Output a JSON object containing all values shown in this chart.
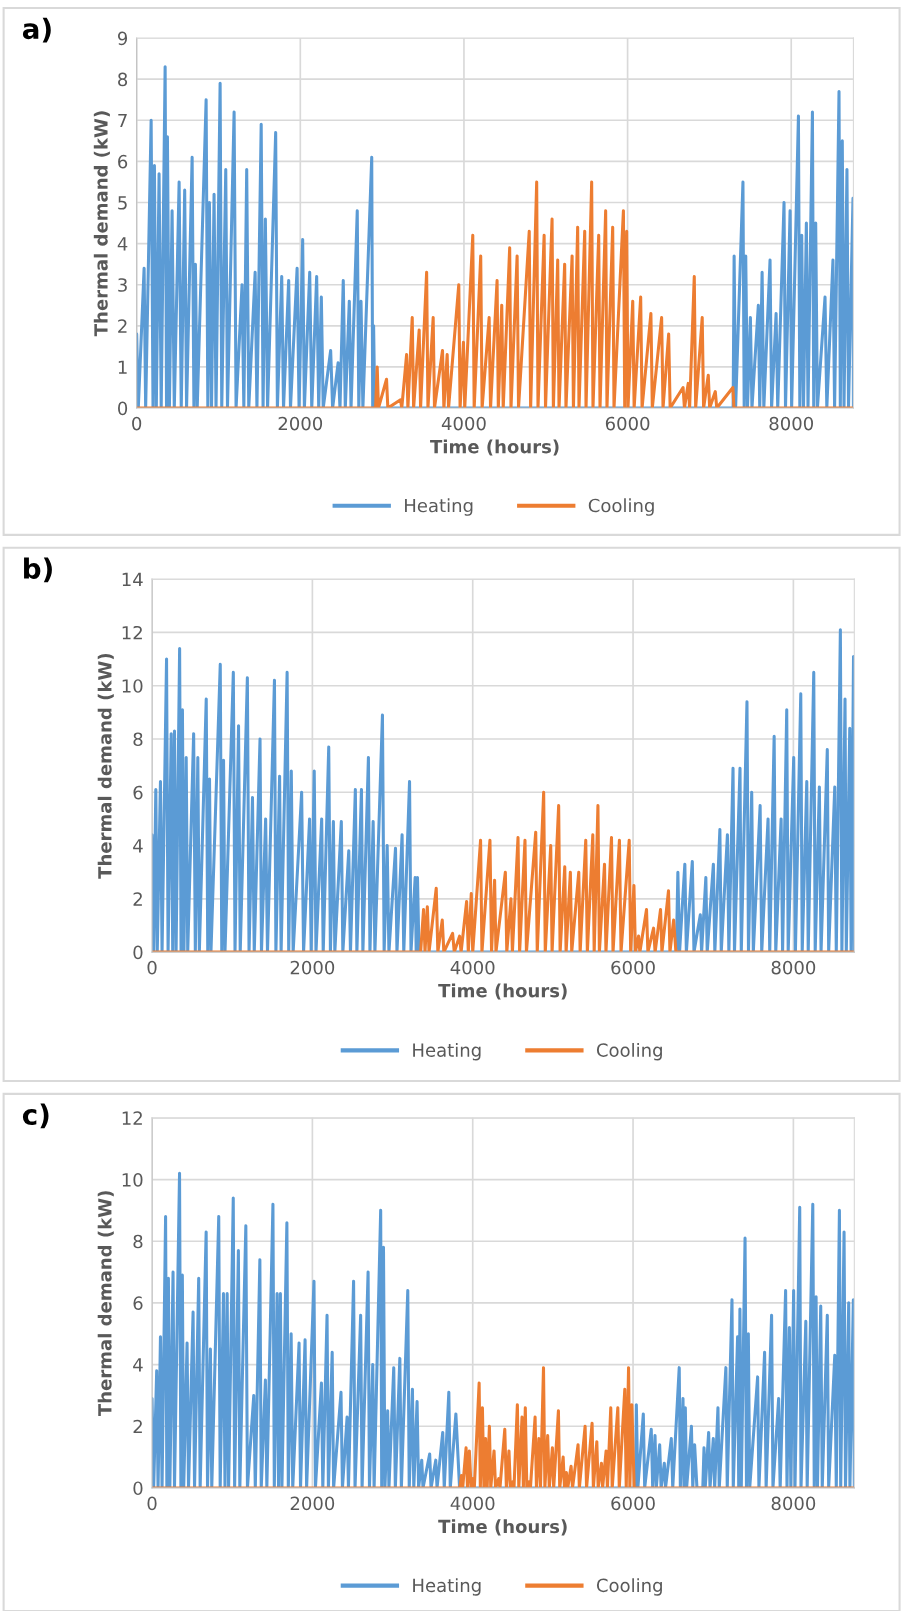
{
  "chart_data": [
    {
      "type": "line",
      "title": "a)",
      "xlabel": "Time (hours)",
      "ylabel": "Thermal demand (kW)",
      "xlim": [
        0,
        8760
      ],
      "xticks": [
        0,
        2000,
        4000,
        6000,
        8000
      ],
      "ylim": [
        0,
        9
      ],
      "yticks": [
        0,
        1,
        2,
        3,
        4,
        5,
        6,
        7,
        8,
        9
      ],
      "grid": true,
      "legend": "bottom",
      "line_style": "solid",
      "marker": "none",
      "series": [
        {
          "name": "Heating",
          "color": "#5b9bd5",
          "x": [
            0,
            20,
            91,
            110,
            177,
            200,
            217,
            240,
            274,
            300,
            348,
            365,
            376,
            400,
            433,
            460,
            519,
            545,
            587,
            610,
            678,
            700,
            718,
            740,
            849,
            870,
            889,
            915,
            946,
            970,
            1020,
            1040,
            1089,
            1110,
            1191,
            1215,
            1288,
            1310,
            1345,
            1370,
            1448,
            1470,
            1522,
            1545,
            1573,
            1600,
            1699,
            1720,
            1773,
            1795,
            1858,
            1880,
            1961,
            1985,
            2029,
            2050,
            2115,
            2140,
            2200,
            2225,
            2257,
            2280,
            2371,
            2395,
            2462,
            2485,
            2525,
            2550,
            2599,
            2620,
            2696,
            2715,
            2742,
            2765,
            2873,
            2885,
            2896,
            2910,
            7290,
            7302,
            7320,
            7410,
            7425,
            7444,
            7465,
            7501,
            7520,
            7598,
            7615,
            7644,
            7665,
            7741,
            7760,
            7815,
            7835,
            7912,
            7930,
            7986,
            8005,
            8088,
            8105,
            8128,
            8150,
            8185,
            8205,
            8259,
            8275,
            8299,
            8320,
            8413,
            8435,
            8510,
            8530,
            8584,
            8600,
            8624,
            8645,
            8681,
            8700,
            8755,
            8760
          ],
          "values": [
            1.8,
            0,
            3.4,
            0,
            7.0,
            0,
            5.9,
            0,
            5.7,
            0,
            8.3,
            0,
            6.6,
            0,
            4.8,
            0,
            5.5,
            0,
            5.3,
            0,
            6.1,
            0,
            3.5,
            0,
            7.5,
            0,
            5.0,
            0,
            5.2,
            0,
            7.9,
            0,
            5.8,
            0,
            7.2,
            0,
            3.0,
            0,
            5.8,
            0,
            3.3,
            0,
            6.9,
            0,
            4.6,
            0,
            6.7,
            0,
            3.2,
            0,
            3.1,
            0,
            3.4,
            0,
            4.1,
            0,
            3.3,
            0,
            3.2,
            0,
            2.7,
            0,
            1.4,
            0,
            1.1,
            0,
            3.1,
            0,
            2.6,
            0,
            4.8,
            0,
            2.6,
            0,
            6.1,
            0,
            2.0,
            0,
            0,
            3.7,
            0,
            5.5,
            0,
            3.7,
            0,
            2.2,
            0,
            2.5,
            0,
            3.3,
            0,
            3.6,
            0,
            2.3,
            0,
            5.0,
            0,
            4.8,
            0,
            7.1,
            0,
            4.2,
            0,
            4.5,
            0,
            7.2,
            0,
            4.5,
            0,
            2.7,
            0,
            3.6,
            0,
            7.7,
            0,
            6.5,
            0,
            5.8,
            0,
            5.1,
            0
          ]
        },
        {
          "name": "Cooling",
          "color": "#ed7d31",
          "x": [
            0,
            2920,
            2940,
            2955,
            3054,
            3070,
            3225,
            3240,
            3299,
            3315,
            3368,
            3385,
            3453,
            3470,
            3544,
            3560,
            3624,
            3640,
            3738,
            3755,
            3795,
            3812,
            3937,
            3953,
            3994,
            4010,
            4108,
            4125,
            4205,
            4222,
            4308,
            4325,
            4405,
            4420,
            4462,
            4480,
            4559,
            4575,
            4650,
            4667,
            4798,
            4815,
            4889,
            4905,
            4980,
            4997,
            5077,
            5093,
            5146,
            5162,
            5231,
            5247,
            5322,
            5338,
            5390,
            5406,
            5476,
            5492,
            5561,
            5577,
            5647,
            5663,
            5732,
            5748,
            5818,
            5834,
            5949,
            5965,
            5989,
            6005,
            6063,
            6080,
            6160,
            6177,
            6285,
            6302,
            6416,
            6433,
            6502,
            6520,
            6678,
            6695,
            6741,
            6758,
            6815,
            6832,
            6912,
            6929,
            6986,
            7003,
            7072,
            7090,
            7287,
            7300,
            8760
          ],
          "values": [
            0,
            0,
            1.0,
            0,
            0.7,
            0,
            0.2,
            0,
            1.3,
            0,
            2.2,
            0,
            1.9,
            0,
            3.3,
            0,
            2.2,
            0,
            1.4,
            0,
            1.3,
            0,
            3.0,
            0,
            1.6,
            0,
            4.2,
            0,
            3.7,
            0,
            2.2,
            0,
            3.1,
            0,
            2.5,
            0,
            3.9,
            0,
            3.7,
            0,
            4.3,
            0,
            5.5,
            0,
            4.2,
            0,
            4.6,
            0,
            3.6,
            0,
            3.5,
            0,
            3.7,
            0,
            4.4,
            0,
            4.3,
            0,
            5.5,
            0,
            4.2,
            0,
            4.8,
            0,
            4.4,
            0,
            4.8,
            0,
            4.3,
            0,
            2.6,
            0,
            2.7,
            0,
            2.3,
            0,
            2.2,
            0,
            1.8,
            0,
            0.5,
            0,
            0.6,
            0,
            3.2,
            0,
            2.2,
            0,
            0.8,
            0,
            0.4,
            0,
            0.5,
            0,
            0
          ]
        }
      ]
    },
    {
      "type": "line",
      "title": "b)",
      "xlabel": "Time (hours)",
      "ylabel": "Thermal demand (kW)",
      "xlim": [
        0,
        8760
      ],
      "xticks": [
        0,
        2000,
        4000,
        6000,
        8000
      ],
      "ylim": [
        0,
        14
      ],
      "yticks": [
        0,
        2,
        4,
        6,
        8,
        10,
        12,
        14
      ],
      "grid": true,
      "legend": "bottom",
      "line_style": "solid",
      "marker": "none",
      "series": [
        {
          "name": "Heating",
          "color": "#5b9bd5",
          "x": [
            0,
            20,
            47,
            65,
            105,
            125,
            181,
            200,
            239,
            258,
            280,
            300,
            344,
            362,
            379,
            398,
            426,
            445,
            519,
            540,
            571,
            590,
            676,
            695,
            717,
            735,
            851,
            870,
            892,
            910,
            1014,
            1035,
            1079,
            1100,
            1189,
            1210,
            1253,
            1275,
            1347,
            1365,
            1417,
            1440,
            1527,
            1545,
            1591,
            1610,
            1685,
            1705,
            1737,
            1760,
            1866,
            1890,
            1965,
            1985,
            2023,
            2045,
            2116,
            2135,
            2204,
            2225,
            2262,
            2280,
            2361,
            2380,
            2454,
            2475,
            2536,
            2555,
            2612,
            2630,
            2699,
            2718,
            2758,
            2780,
            2874,
            2895,
            2933,
            2955,
            3037,
            3055,
            3119,
            3140,
            3212,
            3230,
            3282,
            3295,
            3311,
            3330,
            6540,
            6559,
            6580,
            6646,
            6665,
            6739,
            6760,
            6839,
            6855,
            6908,
            6925,
            7002,
            7020,
            7083,
            7100,
            7177,
            7195,
            7247,
            7265,
            7334,
            7350,
            7421,
            7440,
            7480,
            7500,
            7585,
            7605,
            7684,
            7705,
            7760,
            7780,
            7847,
            7865,
            7917,
            7935,
            8004,
            8025,
            8092,
            8110,
            8167,
            8185,
            8254,
            8272,
            8324,
            8345,
            8423,
            8440,
            8516,
            8535,
            8586,
            8605,
            8644,
            8660,
            8703,
            8720,
            8750,
            8760
          ],
          "values": [
            4.4,
            0,
            6.1,
            0,
            6.4,
            0,
            11.0,
            0,
            8.2,
            0,
            8.3,
            0,
            11.4,
            0,
            9.1,
            0,
            7.3,
            0,
            8.2,
            0,
            7.3,
            0,
            9.5,
            0,
            6.5,
            0,
            10.8,
            0,
            7.2,
            0,
            10.5,
            0,
            8.5,
            0,
            10.3,
            0,
            5.8,
            0,
            8.0,
            0,
            5.0,
            0,
            10.2,
            0,
            6.6,
            0,
            10.5,
            0,
            6.8,
            0,
            6.0,
            0,
            5.0,
            0,
            6.8,
            0,
            5.0,
            0,
            7.7,
            0,
            4.9,
            0,
            4.9,
            0,
            3.8,
            0,
            6.1,
            0,
            6.1,
            0,
            7.3,
            0,
            4.9,
            0,
            8.9,
            0,
            4.0,
            0,
            3.9,
            0,
            4.4,
            0,
            6.4,
            0,
            2.8,
            0,
            2.8,
            0,
            0,
            3.0,
            0,
            3.3,
            0,
            3.4,
            0,
            1.4,
            0,
            2.8,
            0,
            3.3,
            0,
            4.6,
            0,
            4.4,
            0,
            6.9,
            0,
            6.9,
            0,
            9.4,
            0,
            6.0,
            0,
            5.5,
            0,
            5.0,
            0,
            8.1,
            0,
            5.0,
            0,
            9.1,
            0,
            7.3,
            0,
            9.7,
            0,
            6.4,
            0,
            10.5,
            0,
            6.2,
            0,
            7.6,
            0,
            6.2,
            0,
            12.1,
            0,
            9.5,
            0,
            8.4,
            0,
            11.1,
            0
          ]
        },
        {
          "name": "Cooling",
          "color": "#ed7d31",
          "x": [
            0,
            3350,
            3387,
            3405,
            3434,
            3455,
            3545,
            3565,
            3620,
            3640,
            3749,
            3770,
            3836,
            3855,
            3924,
            3945,
            3982,
            4000,
            4098,
            4115,
            4215,
            4235,
            4273,
            4290,
            4407,
            4425,
            4477,
            4495,
            4565,
            4585,
            4652,
            4670,
            4786,
            4805,
            4885,
            4905,
            4973,
            4990,
            5072,
            5090,
            5148,
            5165,
            5218,
            5235,
            5323,
            5340,
            5410,
            5430,
            5498,
            5515,
            5562,
            5580,
            5644,
            5662,
            5731,
            5750,
            5830,
            5850,
            5952,
            5970,
            6011,
            6030,
            6069,
            6085,
            6168,
            6185,
            6256,
            6275,
            6343,
            6360,
            6442,
            6460,
            6506,
            6535,
            8760
          ],
          "values": [
            0,
            0,
            1.6,
            0,
            1.7,
            0,
            2.4,
            0,
            1.2,
            0,
            0.7,
            0,
            0.6,
            0,
            1.9,
            0,
            2.2,
            0,
            4.2,
            0,
            4.2,
            0,
            2.7,
            0,
            3.0,
            0,
            2.0,
            0,
            4.3,
            0,
            4.2,
            0,
            4.5,
            0,
            6.0,
            0,
            4.0,
            0,
            5.5,
            0,
            3.2,
            0,
            3.0,
            0,
            3.0,
            0,
            4.2,
            0,
            4.4,
            0,
            5.5,
            0,
            3.3,
            0,
            4.3,
            0,
            4.2,
            0,
            4.2,
            0,
            2.5,
            0,
            0.6,
            0,
            1.6,
            0,
            0.9,
            0,
            1.6,
            0,
            2.3,
            0,
            1.2,
            0,
            0
          ]
        }
      ]
    },
    {
      "type": "line",
      "title": "c)",
      "xlabel": "Time (hours)",
      "ylabel": "Thermal demand (kW)",
      "xlim": [
        0,
        8760
      ],
      "xticks": [
        0,
        2000,
        4000,
        6000,
        8000
      ],
      "ylim": [
        0,
        12
      ],
      "yticks": [
        0,
        2,
        4,
        6,
        8,
        10,
        12
      ],
      "grid": true,
      "legend": "bottom",
      "line_style": "solid",
      "marker": "none",
      "series": [
        {
          "name": "Heating",
          "color": "#5b9bd5",
          "x": [
            0,
            20,
            58,
            75,
            105,
            125,
            169,
            185,
            204,
            222,
            262,
            280,
            343,
            360,
            378,
            395,
            437,
            455,
            512,
            530,
            582,
            600,
            675,
            692,
            728,
            745,
            832,
            850,
            891,
            910,
            937,
            955,
            1013,
            1030,
            1077,
            1095,
            1170,
            1190,
            1269,
            1288,
            1345,
            1362,
            1414,
            1432,
            1508,
            1525,
            1560,
            1578,
            1601,
            1620,
            1682,
            1700,
            1735,
            1755,
            1834,
            1852,
            1909,
            1928,
            2020,
            2038,
            2113,
            2130,
            2183,
            2200,
            2247,
            2265,
            2357,
            2375,
            2433,
            2450,
            2514,
            2532,
            2602,
            2620,
            2695,
            2712,
            2753,
            2770,
            2852,
            2865,
            2887,
            2905,
            2939,
            2955,
            3015,
            3035,
            3091,
            3110,
            3190,
            3208,
            3248,
            3265,
            3306,
            3325,
            3364,
            3380,
            3463,
            3480,
            3539,
            3555,
            3626,
            3645,
            3702,
            3720,
            3790,
            3836,
            6030,
            6041,
            6060,
            6128,
            6145,
            6227,
            6245,
            6274,
            6290,
            6332,
            6350,
            6390,
            6405,
            6477,
            6495,
            6576,
            6590,
            6623,
            6635,
            6652,
            6668,
            6728,
            6745,
            6768,
            6797,
            6870,
            6885,
            6900,
            6943,
            6960,
            7001,
            7018,
            7059,
            7075,
            7158,
            7175,
            7234,
            7250,
            7304,
            7318,
            7333,
            7350,
            7397,
            7415,
            7438,
            7455,
            7554,
            7570,
            7641,
            7660,
            7728,
            7745,
            7816,
            7835,
            7903,
            7920,
            7950,
            7968,
            8003,
            8020,
            8079,
            8095,
            8155,
            8172,
            8242,
            8260,
            8283,
            8300,
            8341,
            8360,
            8423,
            8440,
            8516,
            8535,
            8574,
            8590,
            8632,
            8650,
            8690,
            8705,
            8748,
            8760
          ],
          "values": [
            2.9,
            0,
            3.8,
            0,
            4.9,
            0,
            8.8,
            0,
            6.8,
            0,
            7.0,
            0,
            10.2,
            0,
            6.9,
            0,
            4.7,
            0,
            5.7,
            0,
            6.8,
            0,
            8.3,
            0,
            4.5,
            0,
            8.8,
            0,
            6.3,
            0,
            6.3,
            0,
            9.4,
            0,
            7.7,
            0,
            8.5,
            0,
            3.0,
            0,
            7.4,
            0,
            3.5,
            0,
            9.2,
            0,
            6.3,
            0,
            6.3,
            0,
            8.6,
            0,
            5.0,
            0,
            4.7,
            0,
            4.8,
            0,
            6.7,
            0,
            3.4,
            0,
            5.6,
            0,
            4.4,
            0,
            3.1,
            0,
            2.3,
            0,
            6.7,
            0,
            5.6,
            0,
            7.0,
            0,
            4.0,
            0,
            9.0,
            0,
            7.8,
            0,
            2.5,
            0,
            3.9,
            0,
            4.2,
            0,
            6.4,
            0,
            3.2,
            0,
            2.8,
            0,
            0.9,
            0,
            1.1,
            0,
            0.9,
            0,
            1.8,
            0,
            3.1,
            0,
            2.4,
            0,
            0,
            2.7,
            0,
            2.4,
            0,
            1.9,
            0,
            1.7,
            0,
            1.4,
            0,
            0.8,
            0,
            1.6,
            0,
            3.9,
            0,
            2.9,
            0,
            2.6,
            0,
            2.0,
            0,
            1.4,
            0,
            0,
            1.3,
            0,
            1.8,
            0,
            1.6,
            0,
            2.6,
            0,
            3.9,
            0,
            6.1,
            0,
            4.9,
            0,
            5.8,
            0,
            8.1,
            0,
            5.0,
            0,
            3.6,
            0,
            4.4,
            0,
            5.6,
            0,
            2.9,
            0,
            6.4,
            0,
            5.2,
            0,
            6.4,
            0,
            9.1,
            0,
            5.4,
            0,
            9.2,
            0,
            6.2,
            0,
            5.9,
            0,
            5.6,
            0,
            4.3,
            0,
            9.0,
            0,
            8.3,
            0,
            6.0,
            0,
            6.1,
            0
          ]
        },
        {
          "name": "Cooling",
          "color": "#ed7d31",
          "x": [
            0,
            3840,
            3859,
            3875,
            3917,
            3935,
            3958,
            3980,
            4004,
            4020,
            4080,
            4095,
            4121,
            4140,
            4161,
            4180,
            4208,
            4225,
            4266,
            4285,
            4324,
            4340,
            4400,
            4420,
            4452,
            4470,
            4499,
            4515,
            4557,
            4575,
            4615,
            4632,
            4656,
            4675,
            4702,
            4720,
            4778,
            4795,
            4825,
            4845,
            4883,
            4900,
            4935,
            4955,
            4994,
            5010,
            5069,
            5085,
            5128,
            5145,
            5168,
            5185,
            5227,
            5245,
            5314,
            5330,
            5402,
            5420,
            5489,
            5505,
            5548,
            5565,
            5606,
            5620,
            5664,
            5680,
            5722,
            5740,
            5810,
            5828,
            5897,
            5915,
            5944,
            5960,
            5985,
            6014,
            8760
          ],
          "values": [
            0,
            0,
            0.4,
            0,
            1.3,
            0,
            1.2,
            0,
            0.3,
            0,
            3.4,
            0,
            2.6,
            0,
            1.6,
            0,
            2.0,
            0,
            1.2,
            0,
            0.3,
            0,
            1.9,
            0,
            1.2,
            0,
            0.2,
            0,
            2.7,
            0,
            2.3,
            0,
            2.6,
            0,
            0.2,
            0,
            2.3,
            0,
            1.6,
            0,
            3.9,
            0,
            1.7,
            0,
            1.3,
            0,
            2.5,
            0,
            1.0,
            0,
            0.5,
            0,
            0.7,
            0,
            1.4,
            0,
            2.0,
            0,
            2.1,
            0,
            1.5,
            0,
            0.8,
            0,
            1.2,
            0,
            2.6,
            0,
            2.6,
            0,
            3.2,
            0,
            3.9,
            0,
            2.7,
            0,
            0
          ]
        }
      ]
    }
  ]
}
